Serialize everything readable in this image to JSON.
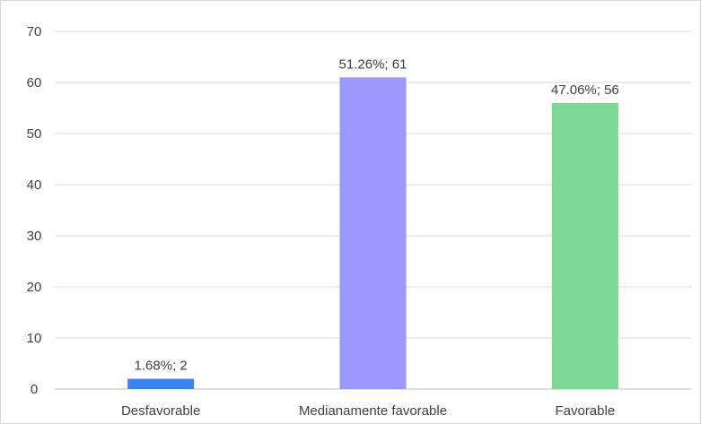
{
  "chart_data": {
    "type": "bar",
    "categories": [
      "Desfavorable",
      "Medianamente favorable",
      "Favorable"
    ],
    "values": [
      2,
      61,
      56
    ],
    "data_labels": [
      "1.68%; 2",
      "51.26%; 61",
      "47.06%; 56"
    ],
    "colors": [
      "#3c83f2",
      "#9999ff",
      "#7cd894"
    ],
    "ylim": [
      0,
      70
    ],
    "yticks": [
      0,
      10,
      20,
      30,
      40,
      50,
      60,
      70
    ],
    "grid": true,
    "legend": "none",
    "title": "",
    "xlabel": "",
    "ylabel": ""
  }
}
